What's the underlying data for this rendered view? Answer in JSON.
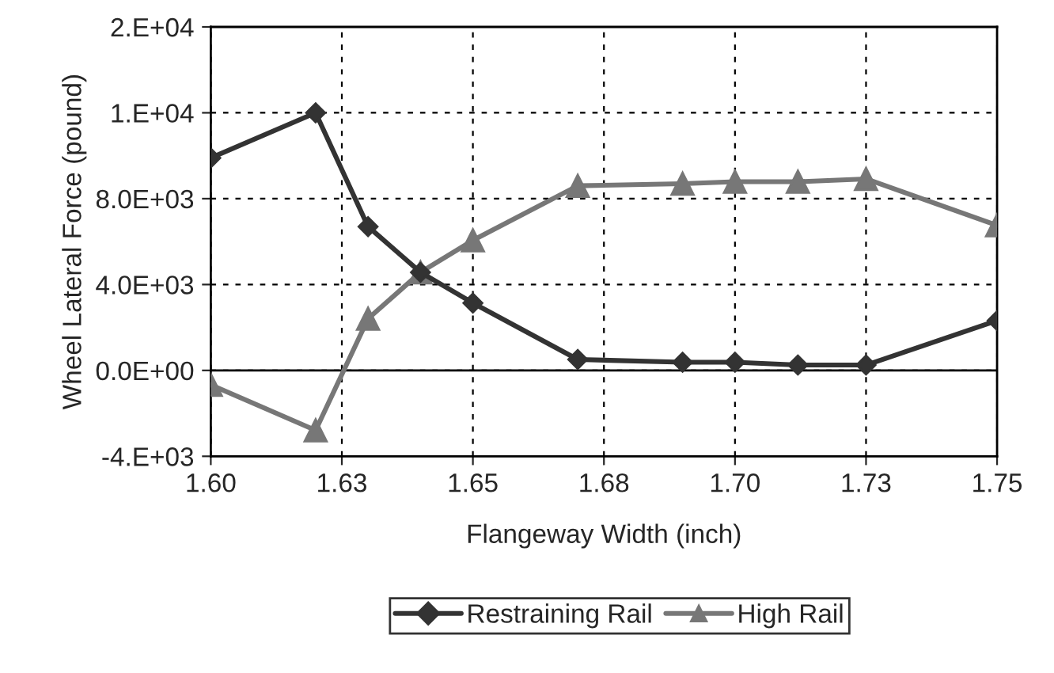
{
  "chart_data": {
    "type": "line",
    "xlabel": "Flangeway Width (inch)",
    "ylabel": "Wheel Lateral Force (pound)",
    "x": [
      1.6,
      1.62,
      1.63,
      1.64,
      1.65,
      1.67,
      1.69,
      1.7,
      1.712,
      1.725,
      1.75
    ],
    "series": [
      {
        "name": "Restraining Rail",
        "color": "#333333",
        "marker": "diamond",
        "values": [
          9900,
          12000,
          6700,
          4570,
          3140,
          510,
          380,
          380,
          250,
          250,
          2320
        ]
      },
      {
        "name": "High Rail",
        "color": "#777777",
        "marker": "triangle",
        "values": [
          -670,
          -2790,
          2410,
          4570,
          6060,
          8600,
          8700,
          8790,
          8790,
          8920,
          6760
        ]
      }
    ],
    "xlim": [
      1.6,
      1.75
    ],
    "xticks": [
      {
        "value": 1.6,
        "label": "1.60"
      },
      {
        "value": 1.625,
        "label": "1.63"
      },
      {
        "value": 1.65,
        "label": "1.65"
      },
      {
        "value": 1.675,
        "label": "1.68"
      },
      {
        "value": 1.7,
        "label": "1.70"
      },
      {
        "value": 1.725,
        "label": "1.73"
      },
      {
        "value": 1.75,
        "label": "1.75"
      }
    ],
    "ylim": [
      -4000,
      16000
    ],
    "yticks": [
      {
        "value": -4000,
        "label": "-4.E+03"
      },
      {
        "value": 0,
        "label": "0.0E+00"
      },
      {
        "value": 4000,
        "label": "4.0E+03"
      },
      {
        "value": 8000,
        "label": "8.0E+03"
      },
      {
        "value": 12000,
        "label": "1.E+04"
      },
      {
        "value": 16000,
        "label": "2.E+04"
      }
    ],
    "ref_lines": [
      {
        "axis": "y",
        "value": 0,
        "color": "#000000",
        "line_style": "solid"
      }
    ],
    "grid": true,
    "legend": "bottom",
    "line_style": "solid"
  }
}
